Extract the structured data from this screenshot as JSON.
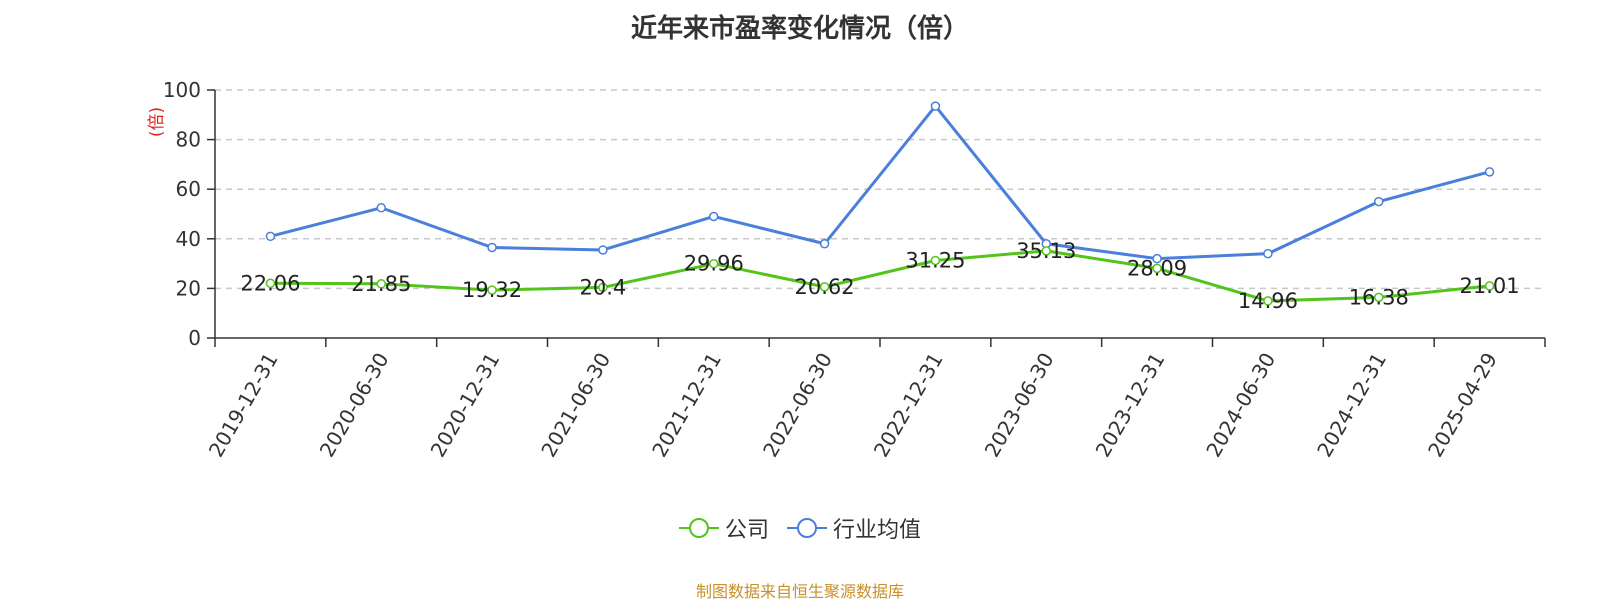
{
  "chart_data": {
    "type": "line",
    "title": "近年来市盈率变化情况（倍）",
    "ylabel": "(倍)",
    "xlabel": "",
    "categories": [
      "2019-12-31",
      "2020-06-30",
      "2020-12-31",
      "2021-06-30",
      "2021-12-31",
      "2022-06-30",
      "2022-12-31",
      "2023-06-30",
      "2023-12-31",
      "2024-06-30",
      "2024-12-31",
      "2025-04-29"
    ],
    "ylim": [
      0,
      100
    ],
    "yticks": [
      "0",
      "20",
      "40",
      "60",
      "80",
      "100"
    ],
    "grid": true,
    "legend_position": "bottom-center",
    "series": [
      {
        "name": "公司",
        "color": "#52c41a",
        "show_labels": true,
        "values": [
          22.06,
          21.85,
          19.32,
          20.4,
          29.96,
          20.62,
          31.25,
          35.13,
          28.09,
          14.96,
          16.38,
          21.01
        ],
        "labels": [
          "22.06",
          "21.85",
          "19.32",
          "20.4",
          "29.96",
          "20.62",
          "31.25",
          "35.13",
          "28.09",
          "14.96",
          "16.38",
          "21.01"
        ]
      },
      {
        "name": "行业均值",
        "color": "#4a7fdb",
        "show_labels": false,
        "values": [
          41,
          52.5,
          36.5,
          35.5,
          49,
          38,
          93.5,
          38,
          32,
          34,
          55,
          67
        ]
      }
    ]
  },
  "source_note": "制图数据来自恒生聚源数据库"
}
